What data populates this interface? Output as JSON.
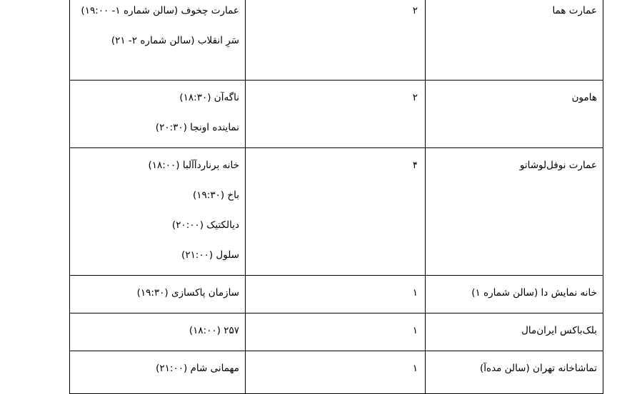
{
  "table": {
    "rows": [
      {
        "venue": "عمارت هما",
        "count": "۲",
        "shows": [
          "عمارت چخوف (سالن شماره ۱- ۱۹:۰۰)",
          "سَرِ انقلاب (سالن شماره ۲- ۲۱)"
        ]
      },
      {
        "venue": "هامون",
        "count": "۲",
        "shows": [
          "ناگه‌آن (۱۸:۳۰)",
          "نماینده اونجا (۲۰:۳۰)"
        ]
      },
      {
        "venue": "عمارت نوفل‌لوشاتو",
        "count": "۴",
        "shows": [
          "خانه برناردآآلبا (۱۸:۰۰)",
          "باخ (۱۹:۳۰)",
          "دیالکتیک (۲۰:۰۰)",
          "سلول (۲۱:۰۰)"
        ]
      },
      {
        "venue": "خانه نمایش دا (سالن شماره ۱)",
        "count": "۱",
        "shows": [
          "سازمان پاکسازی (۱۹:۳۰)"
        ]
      },
      {
        "venue": "بلک‌باکس ایران‌مال",
        "count": "۱",
        "shows": [
          "۲۵۷ (۱۸:۰۰)"
        ]
      },
      {
        "venue": "تماشاخانه تهران (سالن مده‌آ)",
        "count": "۱",
        "shows": [
          "مهمانی شام (۲۱:۰۰)"
        ]
      }
    ]
  }
}
